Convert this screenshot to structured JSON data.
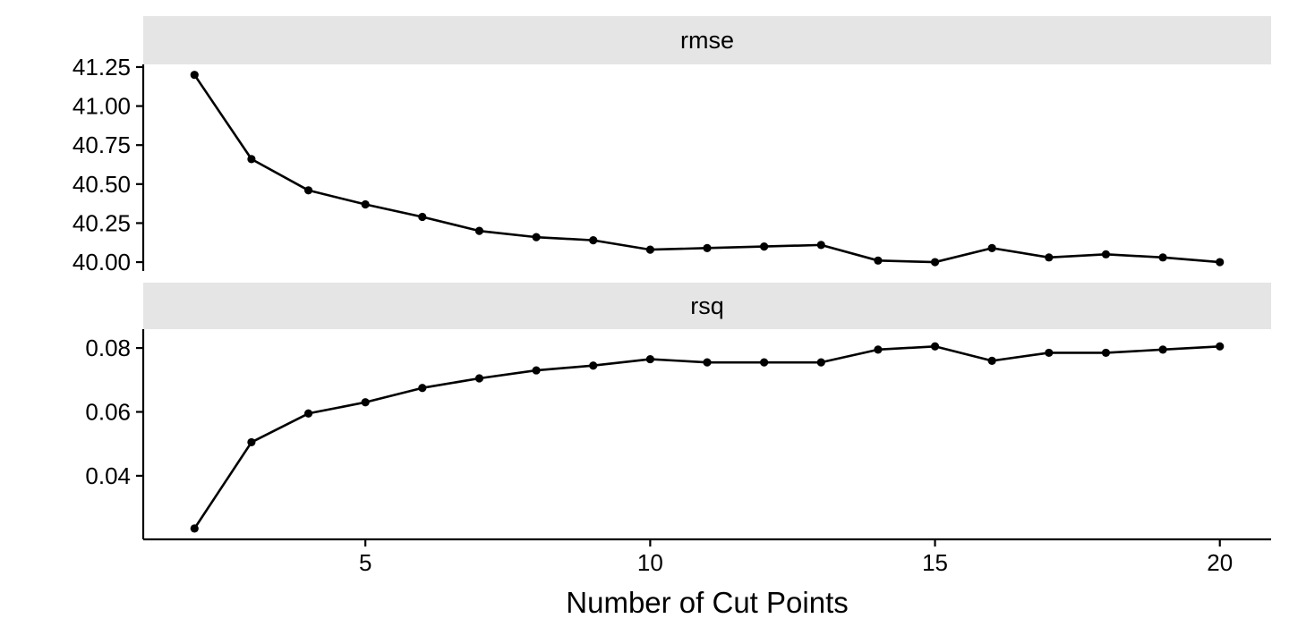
{
  "figure": {
    "background": "#ffffff",
    "strip_background": "#E5E5E5",
    "line_color": "#000000",
    "point_color": "#000000",
    "axis_color": "#000000",
    "text_color": "#000000"
  },
  "chart_data": {
    "type": "line",
    "title": "",
    "xlabel": "Number of Cut Points",
    "ylabel": "",
    "grid": false,
    "legend": false,
    "point_shape": "filled-circle",
    "x": [
      2,
      3,
      4,
      5,
      6,
      7,
      8,
      9,
      10,
      11,
      12,
      13,
      14,
      15,
      16,
      17,
      18,
      19,
      20
    ],
    "xlim": [
      1.1,
      20.9
    ],
    "xticks": {
      "values": [
        5,
        10,
        15,
        20
      ],
      "labels": [
        "5",
        "10",
        "15",
        "20"
      ]
    },
    "facets": [
      {
        "name": "rmse",
        "values": [
          41.2,
          40.66,
          40.46,
          40.37,
          40.29,
          40.2,
          40.16,
          40.14,
          40.08,
          40.09,
          40.1,
          40.11,
          40.01,
          40.0,
          40.09,
          40.03,
          40.05,
          40.03,
          40.0
        ],
        "ylim": [
          39.943,
          41.267
        ],
        "yticks": {
          "values": [
            41.25,
            41.0,
            40.75,
            40.5,
            40.25,
            40.0
          ],
          "labels": [
            "41.25",
            "41.00",
            "40.75",
            "40.50",
            "40.25",
            "40.00"
          ]
        }
      },
      {
        "name": "rsq",
        "values": [
          0.0235,
          0.0505,
          0.0595,
          0.063,
          0.0675,
          0.0705,
          0.073,
          0.0745,
          0.0765,
          0.0755,
          0.0755,
          0.0755,
          0.0795,
          0.0805,
          0.076,
          0.0785,
          0.0785,
          0.0795,
          0.0805
        ],
        "ylim": [
          0.0201,
          0.0859
        ],
        "yticks": {
          "values": [
            0.08,
            0.06,
            0.04
          ],
          "labels": [
            "0.08",
            "0.06",
            "0.04"
          ]
        }
      }
    ]
  }
}
